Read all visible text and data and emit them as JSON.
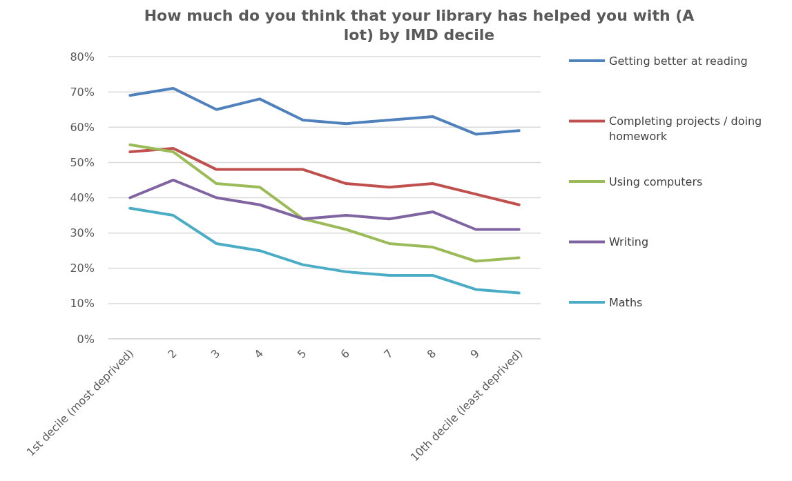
{
  "chart_data": {
    "type": "line",
    "title": "How much do you think that your library has helped you with (A lot) by IMD decile",
    "categories": [
      "1st decile (most deprived)",
      "2",
      "3",
      "4",
      "5",
      "6",
      "7",
      "8",
      "9",
      "10th decile (least deprived)"
    ],
    "series": [
      {
        "name": "Getting better at reading",
        "color": "#4f81bd",
        "values": [
          69,
          71,
          65,
          68,
          62,
          61,
          62,
          63,
          58,
          59
        ]
      },
      {
        "name": "Completing projects / doing homework",
        "color": "#c0504d",
        "values": [
          53,
          54,
          48,
          48,
          48,
          44,
          43,
          44,
          41,
          38
        ]
      },
      {
        "name": "Using computers",
        "color": "#9bbb59",
        "values": [
          55,
          53,
          44,
          43,
          34,
          31,
          27,
          26,
          22,
          23
        ]
      },
      {
        "name": "Writing",
        "color": "#8064a2",
        "values": [
          40,
          45,
          40,
          38,
          34,
          35,
          34,
          36,
          31,
          31
        ]
      },
      {
        "name": "Maths",
        "color": "#4bacc6",
        "values": [
          37,
          35,
          27,
          25,
          21,
          19,
          18,
          18,
          14,
          13
        ]
      }
    ],
    "ylim": [
      0,
      80
    ],
    "yticks": [
      {
        "value": 0,
        "label": "0%"
      },
      {
        "value": 10,
        "label": "10%"
      },
      {
        "value": 20,
        "label": "20%"
      },
      {
        "value": 30,
        "label": "30%"
      },
      {
        "value": 40,
        "label": "40%"
      },
      {
        "value": 50,
        "label": "50%"
      },
      {
        "value": 60,
        "label": "60%"
      },
      {
        "value": 70,
        "label": "70%"
      },
      {
        "value": 80,
        "label": "80%"
      }
    ],
    "grid": "y",
    "legend": "right",
    "marker": "none",
    "line_style": "solid"
  }
}
